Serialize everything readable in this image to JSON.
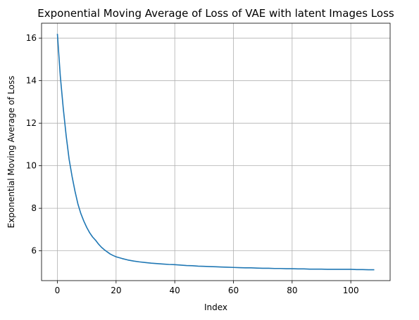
{
  "chart_data": {
    "type": "line",
    "title": "Exponential Moving Average of Loss of VAE with latent Images Loss",
    "xlabel": "Index",
    "ylabel": "Exponential Moving Average of Loss",
    "xlim": [
      -5.4,
      113.4
    ],
    "ylim": [
      4.6,
      16.7
    ],
    "xticks": [
      0,
      20,
      40,
      60,
      80,
      100
    ],
    "yticks": [
      6,
      8,
      10,
      12,
      14,
      16
    ],
    "grid": true,
    "line_color": "#1f77b4",
    "series": [
      {
        "x": [
          0,
          1,
          2,
          3,
          4,
          5,
          6,
          7,
          8,
          9,
          10,
          11,
          12,
          13,
          14,
          15,
          16,
          17,
          18,
          19,
          20,
          22,
          24,
          26,
          28,
          30,
          32,
          34,
          36,
          38,
          40,
          42,
          44,
          46,
          48,
          50,
          52,
          54,
          56,
          58,
          60,
          62,
          64,
          66,
          68,
          70,
          72,
          74,
          76,
          78,
          80,
          82,
          84,
          86,
          88,
          90,
          92,
          94,
          96,
          98,
          100,
          102,
          104,
          106,
          108
        ],
        "y": [
          16.2,
          14.2,
          12.7,
          11.4,
          10.3,
          9.5,
          8.8,
          8.2,
          7.75,
          7.4,
          7.1,
          6.85,
          6.65,
          6.5,
          6.32,
          6.17,
          6.05,
          5.95,
          5.85,
          5.78,
          5.72,
          5.64,
          5.57,
          5.52,
          5.48,
          5.45,
          5.42,
          5.4,
          5.38,
          5.36,
          5.35,
          5.33,
          5.31,
          5.3,
          5.28,
          5.27,
          5.26,
          5.25,
          5.24,
          5.23,
          5.22,
          5.21,
          5.2,
          5.2,
          5.19,
          5.18,
          5.18,
          5.17,
          5.17,
          5.16,
          5.16,
          5.15,
          5.15,
          5.14,
          5.14,
          5.14,
          5.13,
          5.13,
          5.13,
          5.13,
          5.13,
          5.12,
          5.12,
          5.11,
          5.11
        ]
      }
    ]
  }
}
